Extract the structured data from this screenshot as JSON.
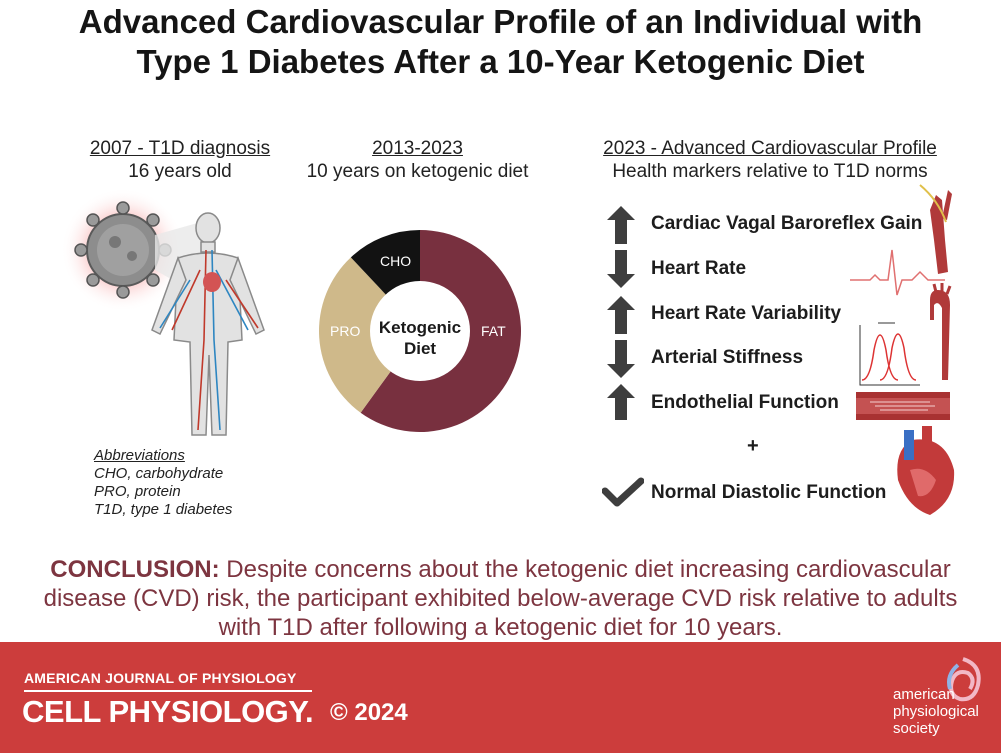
{
  "title": {
    "line1": "Advanced Cardiovascular Profile of an Individual with",
    "line2": "Type 1 Diabetes After a 10-Year Ketogenic Diet"
  },
  "columns": {
    "diagnosis": {
      "heading": "2007 - T1D diagnosis",
      "sub": "16 years old"
    },
    "diet": {
      "heading": "2013-2023",
      "sub": "10 years on ketogenic diet"
    },
    "profile": {
      "heading": "2023 - Advanced Cardiovascular Profile",
      "sub": "Health markers relative to T1D norms"
    }
  },
  "diet_chart": {
    "center_line1": "Ketogenic",
    "center_line2": "Diet",
    "segments": [
      {
        "label": "FAT",
        "value": 0.6,
        "color": "#78303f"
      },
      {
        "label": "PRO",
        "value": 0.28,
        "color": "#cfb98a"
      },
      {
        "label": "CHO",
        "value": 0.12,
        "color": "#121212"
      }
    ]
  },
  "markers": [
    {
      "label": "Cardiac Vagal Baroreflex Gain",
      "direction": "up"
    },
    {
      "label": "Heart Rate",
      "direction": "down"
    },
    {
      "label": "Heart Rate Variability",
      "direction": "up"
    },
    {
      "label": "Arterial Stiffness",
      "direction": "down"
    },
    {
      "label": "Endothelial Function",
      "direction": "up"
    }
  ],
  "plus": "+",
  "diastolic": {
    "label": "Normal Diastolic Function"
  },
  "abbreviations": {
    "heading": "Abbreviations",
    "items": [
      "CHO, carbohydrate",
      "PRO, protein",
      "T1D, type 1 diabetes"
    ]
  },
  "conclusion": {
    "lead": "CONCLUSION:",
    "text": "Despite concerns about the ketogenic diet increasing cardiovascular disease (CVD) risk, the participant exhibited below-average CVD risk relative to adults with T1D after following a ketogenic diet for 10 years."
  },
  "footer": {
    "journal_top": "AMERICAN JOURNAL OF PHYSIOLOGY",
    "journal_main": "CELL PHYSIOLOGY.",
    "copyright": "© 2024",
    "society_line1": "american",
    "society_line2": "physiological",
    "society_line3": "society"
  },
  "colors": {
    "accent": "#cc3d3c",
    "conclusion": "#7d3540",
    "arrow": "#3e3e3e"
  }
}
